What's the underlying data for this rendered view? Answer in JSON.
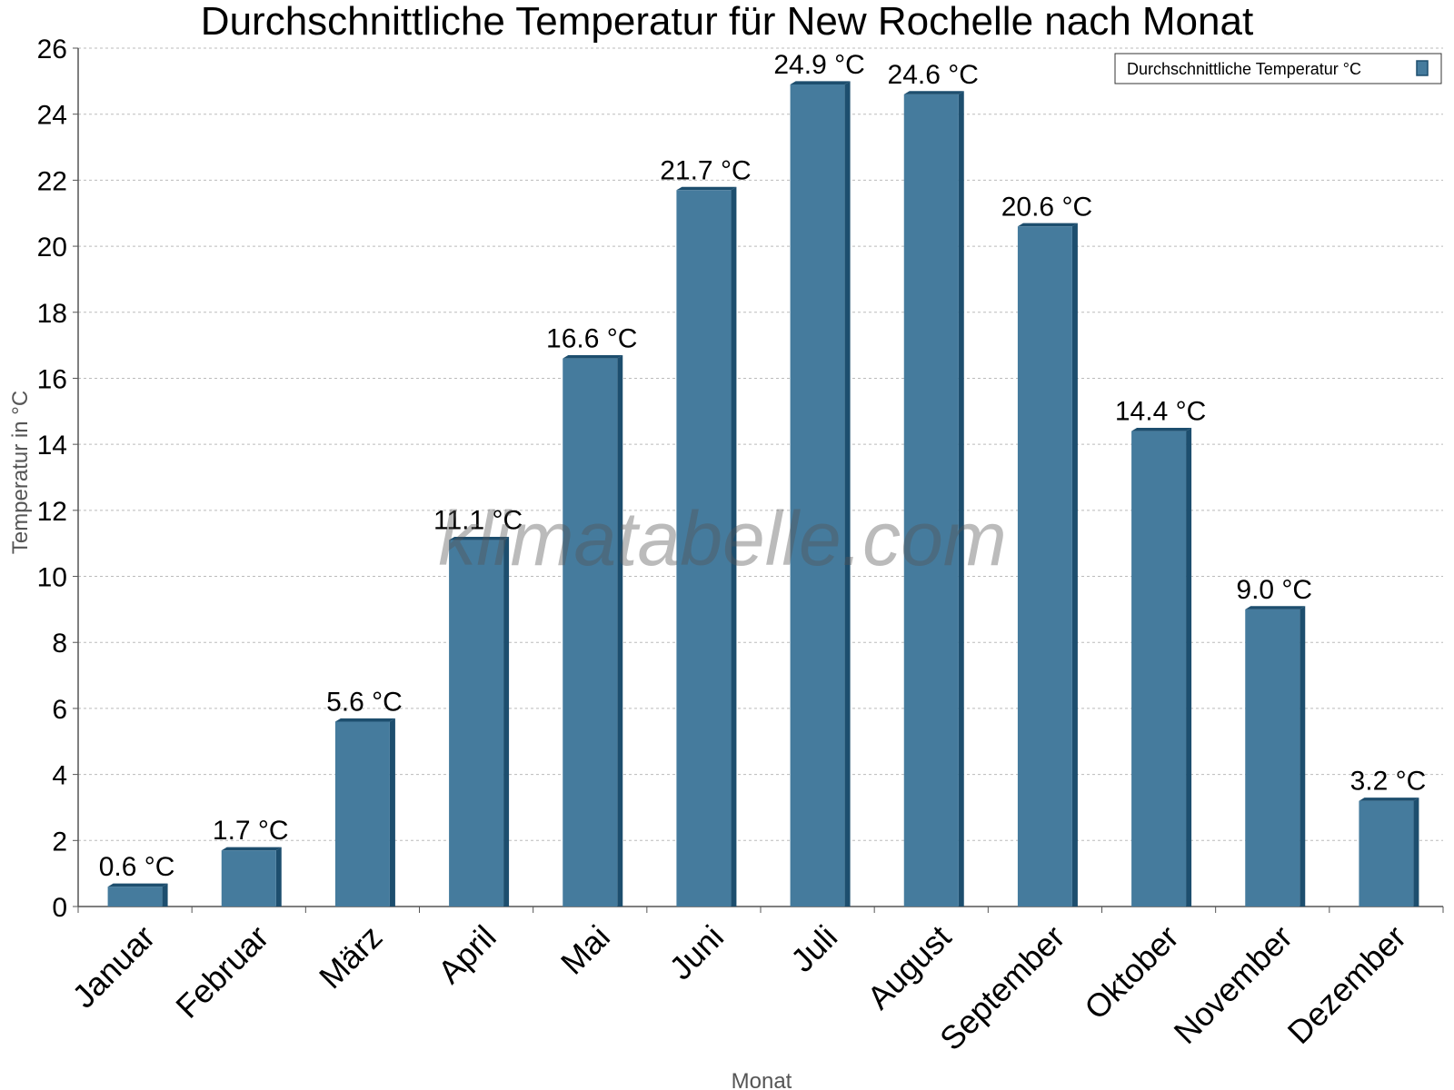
{
  "chart_data": {
    "type": "bar",
    "title": "Durchschnittliche Temperatur für New Rochelle nach Monat",
    "xlabel": "Monat",
    "ylabel": "Temperatur in °C",
    "categories": [
      "Januar",
      "Februar",
      "März",
      "April",
      "Mai",
      "Juni",
      "Juli",
      "August",
      "September",
      "Oktober",
      "November",
      "Dezember"
    ],
    "series": [
      {
        "name": "Durchschnittliche Temperatur °C",
        "values": [
          0.6,
          1.7,
          5.6,
          11.1,
          16.6,
          21.7,
          24.9,
          24.6,
          20.6,
          14.4,
          9.0,
          3.2
        ],
        "labels": [
          "0.6 °C",
          "1.7 °C",
          "5.6 °C",
          "11.1 °C",
          "16.6 °C",
          "21.7 °C",
          "24.9 °C",
          "24.6 °C",
          "20.6 °C",
          "14.4 °C",
          "9.0 °C",
          "3.2 °C"
        ]
      }
    ],
    "ylim": [
      0,
      26
    ],
    "yticks": [
      0,
      2,
      4,
      6,
      8,
      10,
      12,
      14,
      16,
      18,
      20,
      22,
      24,
      26
    ],
    "grid": true,
    "legend_position": "top-right",
    "colors": {
      "bar": "#457b9d",
      "bar_side": "#1d4e6e",
      "grid": "#bbbbbb",
      "axis": "#555555"
    },
    "watermark": "klimatabelle.com"
  }
}
